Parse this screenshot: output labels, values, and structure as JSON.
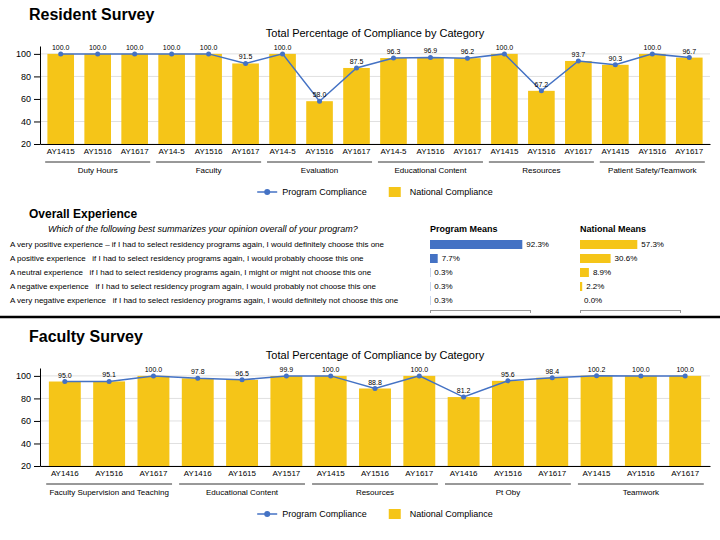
{
  "chart_data": [
    {
      "type": "bar",
      "title": "Resident Survey",
      "subtitle": "Total Percentage of Compliance by Category",
      "categories": [
        "AY1415",
        "AY1516",
        "AY1617",
        "AY14-5",
        "AY1516",
        "AY1617",
        "AY14-5",
        "AY1516",
        "AY1617",
        "AY14-5",
        "AY1516",
        "AY1617",
        "AY1415",
        "AY1516",
        "AY1617",
        "AY1415",
        "AY1516",
        "AY1617"
      ],
      "series": [
        {
          "name": "Program Compliance",
          "type": "line",
          "color": "#4472C4",
          "marker": "circle",
          "line_style": "solid",
          "values": [
            100.0,
            100.0,
            100.0,
            100.0,
            100.0,
            91.5,
            100.0,
            58.0,
            87.5,
            96.3,
            96.9,
            96.2,
            100.0,
            67.2,
            93.7,
            90.3,
            100.0,
            96.7
          ]
        },
        {
          "name": "National Compliance",
          "type": "bar",
          "color": "#F5C518",
          "values": [
            100.0,
            100.0,
            100.0,
            100.0,
            100.0,
            91.5,
            100.0,
            58.0,
            87.5,
            96.3,
            96.9,
            96.2,
            100.0,
            67.2,
            93.7,
            90.3,
            100.0,
            96.7
          ],
          "value_labels": [
            "100.0",
            "100.0",
            "100.0",
            "100.0",
            "100.0",
            "91.5",
            "100.0",
            "58.0",
            "87.5",
            "96.3",
            "96.9",
            "96.2",
            "100.0",
            "67.2",
            "93.7",
            "90.3",
            "100.0",
            "96.7"
          ]
        }
      ],
      "groups": [
        {
          "label": "Duty Hours",
          "first": 0,
          "last": 2
        },
        {
          "label": "Faculty",
          "first": 3,
          "last": 5
        },
        {
          "label": "Evaluation",
          "first": 6,
          "last": 8
        },
        {
          "label": "Educational Content",
          "first": 9,
          "last": 11
        },
        {
          "label": "Resources",
          "first": 12,
          "last": 14
        },
        {
          "label": "Patient Safety/Teamwork",
          "first": 15,
          "last": 17
        }
      ],
      "ylim": [
        20,
        107
      ],
      "yticks": [
        20,
        40,
        60,
        80,
        100
      ],
      "grid": true,
      "legend": "bottom",
      "data_labels": true
    },
    {
      "type": "bar",
      "orientation": "horizontal",
      "title": "Overall Experience",
      "subtitle": "Which of the following best summarizes your opinion overall of your program?",
      "categories": [
        "A very positive experience – if I had to select residency programs again, I would definitely choose this one",
        "A positive experience   if I had to select residency programs again, I would probably choose this one",
        "A neutral experience   if I had to select residency programs again, I might or might not choose this one",
        "A negative experience   if I had to select residency program again, I would probably not choose this one",
        "A very negative experience   if I had to select residency programs again, I would definitely not choose this one"
      ],
      "series": [
        {
          "name": "Program Means",
          "color": "#4472C4",
          "values": [
            92.3,
            7.7,
            0.3,
            0.3,
            0.3
          ],
          "value_labels": [
            "92.3%",
            "7.7%",
            "0.3%",
            "0.3%",
            "0.3%"
          ]
        },
        {
          "name": "National Means",
          "color": "#F5C518",
          "values": [
            57.3,
            30.6,
            8.9,
            2.2,
            0.0
          ],
          "value_labels": [
            "57.3%",
            "30.6%",
            "8.9%",
            "2.2%",
            "0.0%"
          ]
        }
      ],
      "xlim": [
        0,
        100
      ],
      "xticks": [
        0,
        100
      ],
      "tick_labels": false,
      "data_labels": true
    },
    {
      "type": "bar",
      "title": "Faculty Survey",
      "subtitle": "Total Percentage of Compliance by Category",
      "categories": [
        "AY1416",
        "AY1516",
        "AY1617",
        "AY1416",
        "AY1615",
        "AY1517",
        "AY1415",
        "AY1516",
        "AY1617",
        "AY1416",
        "AY1516",
        "AY1617",
        "AY1415",
        "AY1516",
        "AY1617"
      ],
      "series": [
        {
          "name": "Program Compliance",
          "type": "line",
          "color": "#4472C4",
          "marker": "circle",
          "line_style": "solid",
          "values": [
            95.0,
            95.1,
            100.0,
            97.8,
            96.5,
            99.9,
            100.0,
            88.8,
            100.0,
            81.2,
            95.6,
            98.4,
            100.2,
            100.0,
            100.0
          ]
        },
        {
          "name": "National Compliance",
          "type": "bar",
          "color": "#F5C518",
          "values": [
            95.0,
            95.1,
            100.0,
            97.8,
            96.5,
            99.9,
            100.0,
            88.8,
            100.0,
            81.2,
            95.6,
            98.4,
            100.2,
            100.0,
            100.0
          ],
          "value_labels": [
            "95.0",
            "95.1",
            "100.0",
            "97.8",
            "96.5",
            "99.9",
            "100.0",
            "88.8",
            "100.0",
            "81.2",
            "95.6",
            "98.4",
            "100.2",
            "100.0",
            "100.0"
          ]
        }
      ],
      "groups": [
        {
          "label": "Faculty Supervision and Teaching",
          "first": 0,
          "last": 2
        },
        {
          "label": "Educational Content",
          "first": 3,
          "last": 5
        },
        {
          "label": "Resources",
          "first": 6,
          "last": 8
        },
        {
          "label": "Pt Oby",
          "first": 9,
          "last": 11
        },
        {
          "label": "Teamwork",
          "first": 12,
          "last": 14
        }
      ],
      "ylim": [
        20,
        107
      ],
      "yticks": [
        20,
        40,
        60,
        80,
        100
      ],
      "grid": true,
      "legend": "bottom",
      "data_labels": true
    }
  ]
}
